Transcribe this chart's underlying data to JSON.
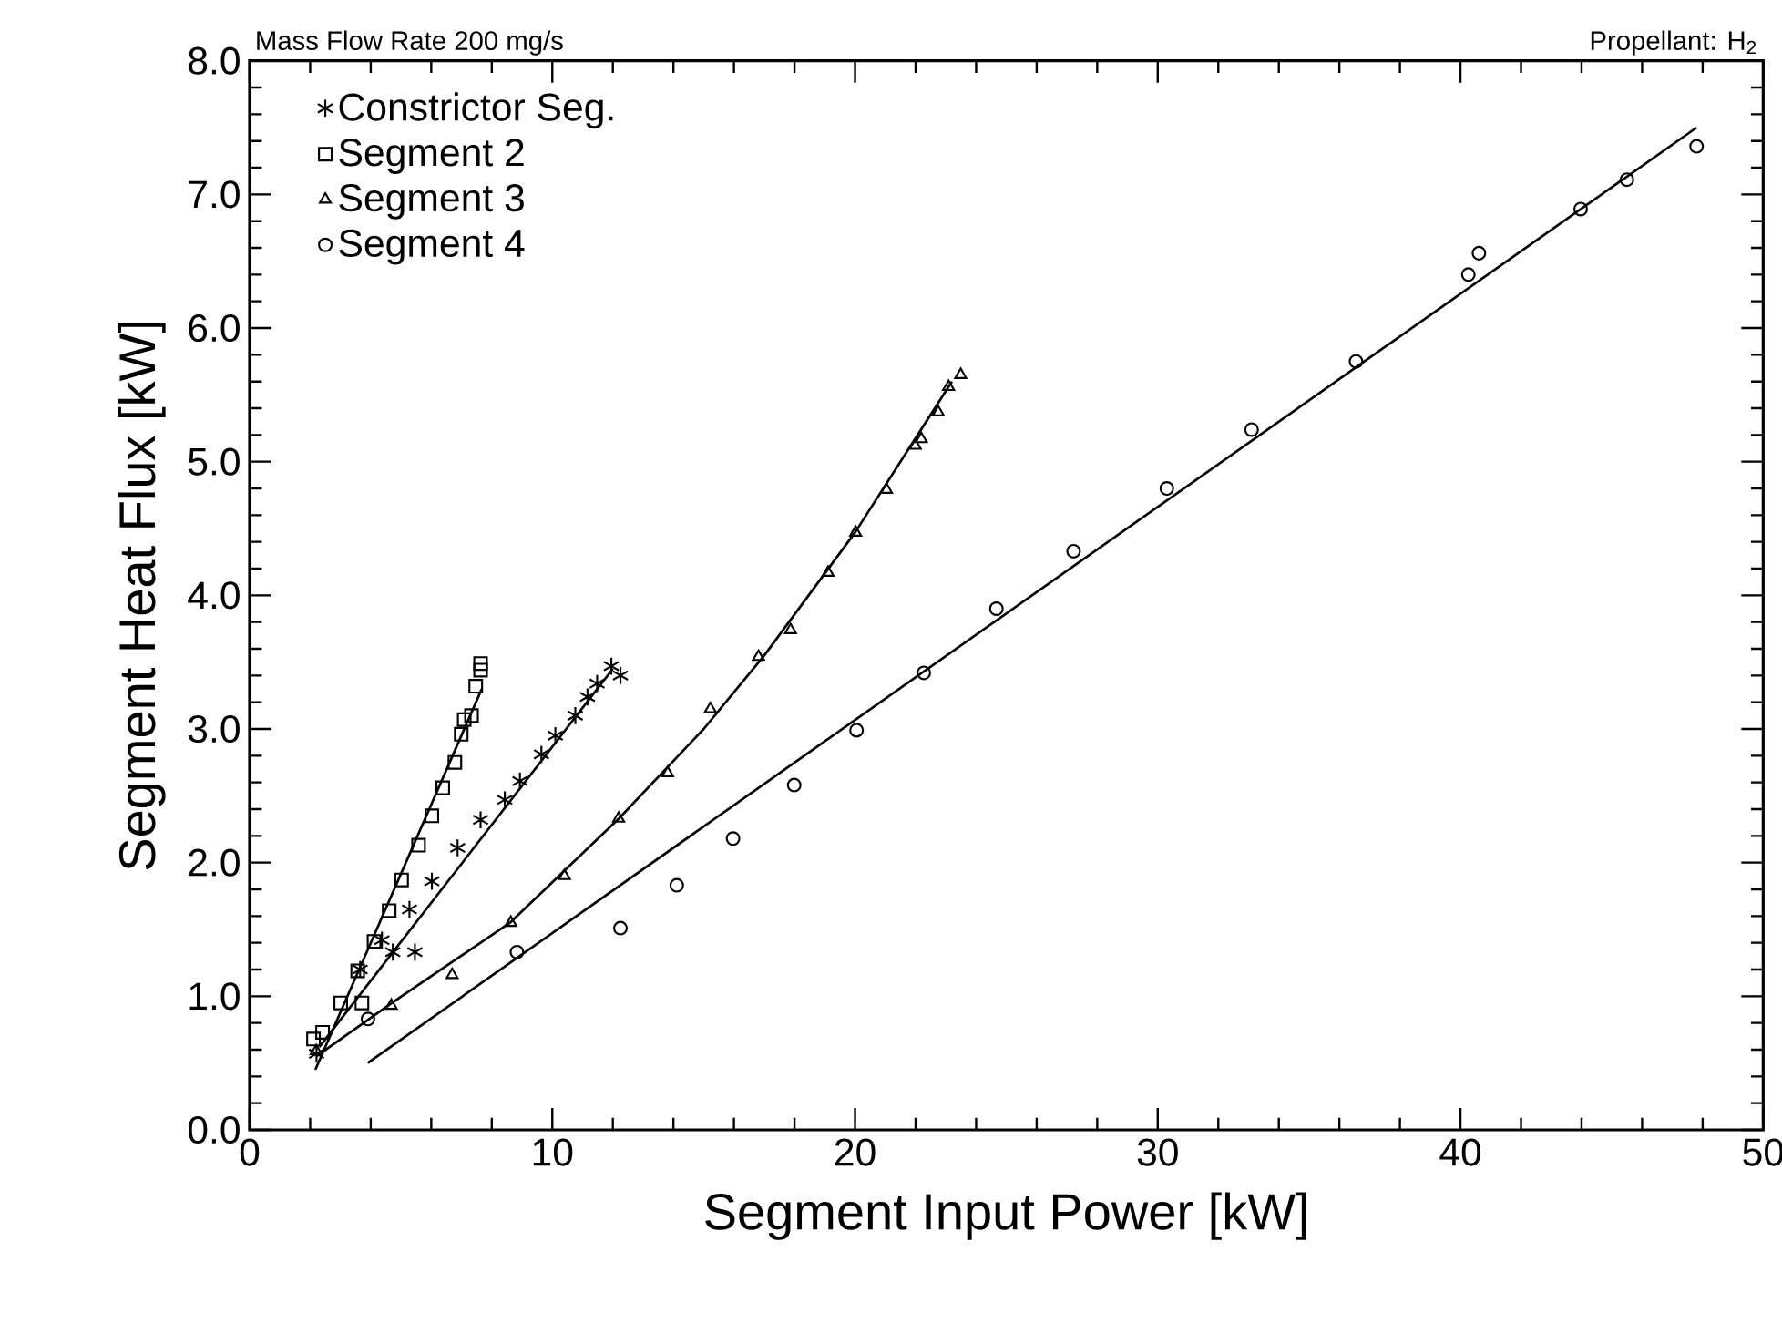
{
  "chart_data": {
    "type": "scatter",
    "xlabel": "Segment Input Power [kW]",
    "ylabel": "Segment Heat Flux [kW]",
    "annotations": [
      "Mass Flow Rate 200 mg/s",
      "Propellant: H$_{2}$"
    ],
    "xlim": [
      0,
      50
    ],
    "ylim": [
      0,
      8
    ],
    "xticks": [
      0,
      10,
      20,
      30,
      40,
      50
    ],
    "yticks": [
      {
        "value": 0,
        "label": "0.0"
      },
      {
        "value": 1,
        "label": "1.0"
      },
      {
        "value": 2,
        "label": "2.0"
      },
      {
        "value": 3,
        "label": "3.0"
      },
      {
        "value": 4,
        "label": "4.0"
      },
      {
        "value": 5,
        "label": "5.0"
      },
      {
        "value": 6,
        "label": "6.0"
      },
      {
        "value": 7,
        "label": "7.0"
      },
      {
        "value": 8,
        "label": "8.0"
      }
    ],
    "grid": false,
    "legend": "top left",
    "series": [
      {
        "name": "Constrictor Seg.",
        "color": "#000000",
        "marker": "cross",
        "x": [
          2.21,
          3.65,
          4.37,
          4.73,
          5.46,
          5.28,
          6.02,
          6.87,
          7.63,
          8.43,
          8.93,
          9.64,
          10.1,
          10.76,
          11.16,
          11.48,
          11.95,
          12.25
        ],
        "values": [
          0.57,
          1.2,
          1.42,
          1.33,
          1.33,
          1.65,
          1.86,
          2.11,
          2.32,
          2.47,
          2.61,
          2.81,
          2.95,
          3.1,
          3.24,
          3.34,
          3.47,
          3.4
        ]
      },
      {
        "name": "Segment 2",
        "color": "#000000",
        "marker": "square",
        "x": [
          2.11,
          2.41,
          3.01,
          3.71,
          3.57,
          4.11,
          4.61,
          5.02,
          5.58,
          6.02,
          6.38,
          6.78,
          6.99,
          7.09,
          7.33,
          7.47,
          7.63,
          7.63
        ],
        "values": [
          0.68,
          0.73,
          0.95,
          0.95,
          1.19,
          1.41,
          1.64,
          1.87,
          2.13,
          2.35,
          2.56,
          2.75,
          2.96,
          3.07,
          3.1,
          3.32,
          3.44,
          3.49
        ]
      },
      {
        "name": "Segment 3",
        "color": "#000000",
        "marker": "triangle",
        "x": [
          2.2,
          4.68,
          6.69,
          8.63,
          10.4,
          12.19,
          13.81,
          15.22,
          16.81,
          17.87,
          19.11,
          20.02,
          21.04,
          21.99,
          22.19,
          22.75,
          23.09,
          23.49
        ],
        "values": [
          0.59,
          0.93,
          1.16,
          1.55,
          1.9,
          2.33,
          2.67,
          3.15,
          3.54,
          3.74,
          4.17,
          4.47,
          4.79,
          5.12,
          5.17,
          5.37,
          5.56,
          5.65
        ]
      },
      {
        "name": "Segment 4",
        "color": "#000000",
        "marker": "circle",
        "x": [
          3.91,
          8.83,
          12.25,
          14.11,
          15.97,
          17.99,
          20.05,
          22.27,
          24.67,
          27.22,
          30.3,
          33.1,
          36.55,
          40.26,
          40.61,
          43.97,
          45.5,
          47.8
        ],
        "values": [
          0.83,
          1.33,
          1.51,
          1.83,
          2.18,
          2.58,
          2.99,
          3.42,
          3.9,
          4.33,
          4.8,
          5.24,
          5.75,
          6.4,
          6.56,
          6.89,
          7.11,
          7.36
        ]
      },
      {
        "type": "line",
        "color": "#000000",
        "marker": "none",
        "line_style": "solid",
        "x": [
          2.3,
          12.0
        ],
        "values": [
          0.62,
          3.45
        ]
      },
      {
        "type": "line",
        "color": "#000000",
        "marker": "none",
        "line_style": "solid",
        "x": [
          2.17,
          7.67
        ],
        "values": [
          0.45,
          3.3
        ]
      },
      {
        "type": "line",
        "color": "#000000",
        "marker": "none",
        "line_style": "solid",
        "x": [
          2.2,
          4.7,
          8.6,
          12.2,
          15.0,
          17.0,
          20.0,
          23.2
        ],
        "values": [
          0.55,
          0.95,
          1.55,
          2.33,
          3.0,
          3.55,
          4.47,
          5.6
        ]
      },
      {
        "type": "line",
        "color": "#000000",
        "marker": "none",
        "line_style": "solid",
        "x": [
          3.9,
          47.8
        ],
        "values": [
          0.5,
          7.5
        ]
      }
    ]
  }
}
